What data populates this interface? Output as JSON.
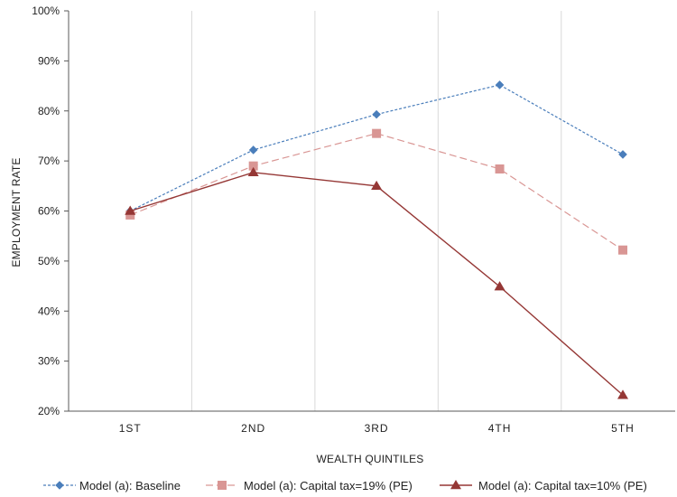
{
  "chart_data": {
    "type": "line",
    "title": "",
    "xlabel": "WEALTH QUINTILES",
    "ylabel": "EMPLOYMENT RATE",
    "categories": [
      "1ST",
      "2ND",
      "3RD",
      "4TH",
      "5TH"
    ],
    "ylim": [
      20,
      100
    ],
    "y_ticks": [
      "20%",
      "30%",
      "40%",
      "50%",
      "60%",
      "70%",
      "80%",
      "90%",
      "100%"
    ],
    "y_tick_values": [
      20,
      30,
      40,
      50,
      60,
      70,
      80,
      90,
      100
    ],
    "grid": "vertical",
    "legend_position": "bottom",
    "series": [
      {
        "name": "Model (a): Baseline",
        "values": [
          60.0,
          72.2,
          79.3,
          85.2,
          71.3
        ],
        "color": "#4a7ebb",
        "line_style": "dotted",
        "marker": "diamond"
      },
      {
        "name": "Model (a): Capital tax=19% (PE)",
        "values": [
          59.2,
          69.0,
          75.5,
          68.4,
          52.2
        ],
        "color": "#d99694",
        "line_style": "dashed",
        "marker": "square"
      },
      {
        "name": "Model (a): Capital tax=10% (PE)",
        "values": [
          60.0,
          67.7,
          65.0,
          44.9,
          23.2
        ],
        "color": "#953735",
        "line_style": "solid",
        "marker": "triangle"
      }
    ]
  }
}
